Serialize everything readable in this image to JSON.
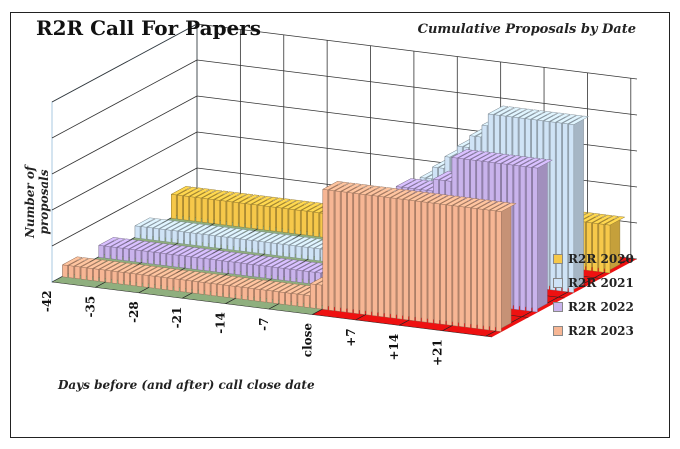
{
  "chart_data": {
    "type": "bar",
    "title": "R2R Call For Papers",
    "subtitle": "Cumulative Proposals by Date",
    "xlabel": "Days before (and after) call close date",
    "ylabel": "Number of proposals",
    "tick_labels": [
      "-42",
      "-35",
      "-28",
      "-21",
      "-14",
      "-7",
      "close",
      "+7",
      "+14",
      "+21"
    ],
    "x": [
      -42,
      -41,
      -40,
      -39,
      -38,
      -37,
      -36,
      -35,
      -34,
      -33,
      -32,
      -31,
      -30,
      -29,
      -28,
      -27,
      -26,
      -25,
      -24,
      -23,
      -22,
      -21,
      -20,
      -19,
      -18,
      -17,
      -16,
      -15,
      -14,
      -13,
      -12,
      -11,
      -10,
      -9,
      -8,
      -7,
      -6,
      -5,
      -4,
      -3,
      -2,
      -1,
      0,
      1,
      2,
      3,
      4,
      5,
      6,
      7,
      8,
      9,
      10,
      11,
      12,
      13,
      14,
      15,
      16,
      17,
      18,
      19,
      20,
      21,
      22,
      23,
      24,
      25,
      26,
      27,
      28
    ],
    "series": [
      {
        "name": "R2R 2020",
        "color": "#f6c84a",
        "values": [
          2,
          2,
          2,
          2,
          2,
          2,
          2,
          2,
          2,
          2,
          2,
          2,
          2,
          2,
          2,
          2,
          2,
          2,
          2,
          2,
          2,
          2,
          2,
          2,
          2,
          2,
          2,
          2,
          2,
          2,
          2,
          2,
          2,
          2,
          2,
          2,
          2,
          2,
          2,
          2,
          2,
          3,
          3,
          3,
          3,
          3,
          3,
          4,
          4,
          4,
          4,
          4,
          4,
          4,
          4,
          4,
          4,
          4,
          4,
          4,
          4,
          4,
          4,
          4,
          4,
          4,
          4,
          4,
          4,
          4,
          4
        ]
      },
      {
        "name": "R2R 2021",
        "color": "#cfe3f6",
        "values": [
          1,
          1,
          1,
          1,
          1,
          1,
          1,
          1,
          1,
          1,
          1,
          1,
          1,
          1,
          1,
          1,
          1,
          1,
          1,
          1,
          1,
          1,
          1,
          1,
          1,
          1,
          1,
          1,
          1,
          1,
          1,
          1,
          1,
          1,
          1,
          1,
          1,
          1,
          1,
          2,
          2,
          3,
          3,
          3,
          3,
          3,
          8,
          8,
          9,
          9,
          10,
          10,
          11,
          11,
          12,
          12,
          13,
          14,
          14,
          14,
          14,
          14,
          14,
          14,
          14,
          14,
          14,
          14,
          14,
          14,
          14
        ]
      },
      {
        "name": "R2R 2022",
        "color": "#c9b3ec",
        "values": [
          1,
          1,
          1,
          1,
          1,
          1,
          1,
          1,
          1,
          1,
          1,
          1,
          1,
          1,
          1,
          1,
          1,
          1,
          1,
          1,
          1,
          1,
          1,
          1,
          1,
          1,
          1,
          1,
          1,
          1,
          1,
          1,
          1,
          1,
          1,
          1,
          1,
          1,
          1,
          1,
          1,
          1,
          1,
          2,
          3,
          4,
          5,
          8,
          9,
          9,
          9,
          9,
          9,
          9,
          10,
          10,
          10,
          12,
          12,
          12,
          12,
          12,
          12,
          12,
          12,
          12,
          12,
          12,
          12,
          12,
          12
        ]
      },
      {
        "name": "R2R 2023",
        "color": "#f7b694",
        "values": [
          1,
          1,
          1,
          1,
          1,
          1,
          1,
          1,
          1,
          1,
          1,
          1,
          1,
          1,
          1,
          1,
          1,
          1,
          1,
          1,
          1,
          1,
          1,
          1,
          1,
          1,
          1,
          1,
          1,
          1,
          1,
          1,
          1,
          1,
          1,
          1,
          1,
          1,
          1,
          1,
          2,
          2,
          10,
          10,
          10,
          10,
          10,
          10,
          10,
          10,
          10,
          10,
          10,
          10,
          10,
          10,
          10,
          10,
          10,
          10,
          10,
          10,
          10,
          10,
          10,
          10,
          10,
          10,
          10,
          10,
          10
        ]
      }
    ],
    "zones": {
      "before_close_color": "#8faf7e",
      "after_close_color": "#ee1111",
      "boundary_x": 0
    },
    "grid": true,
    "legend_position": "right"
  }
}
